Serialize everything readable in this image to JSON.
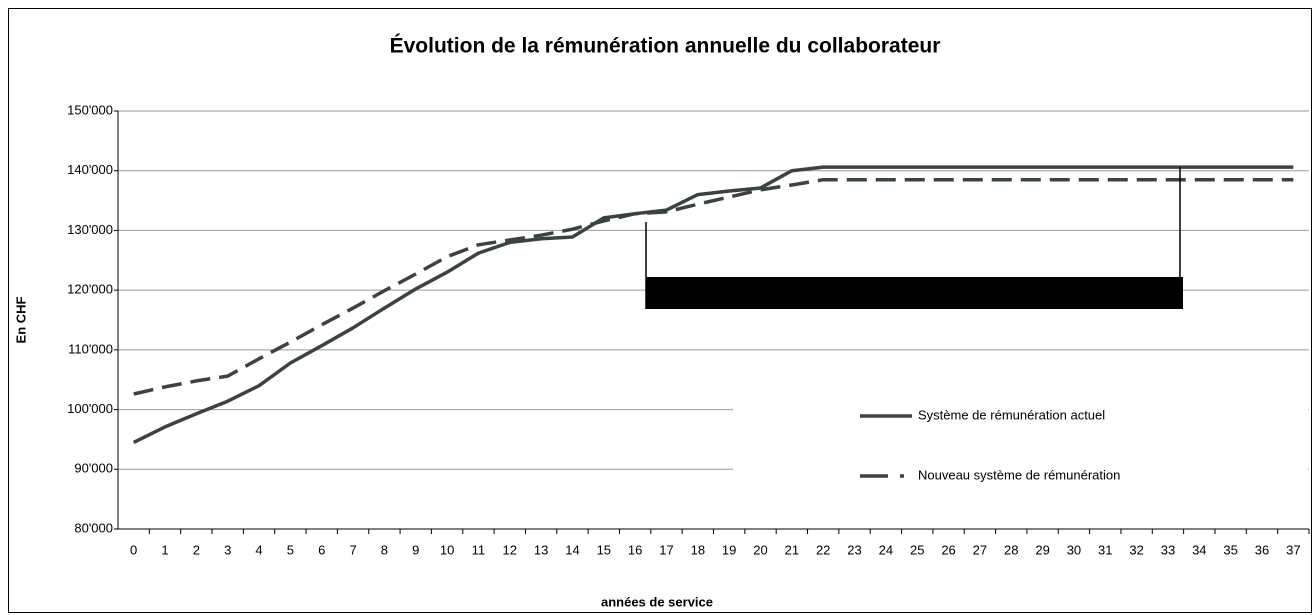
{
  "chart_data": {
    "type": "line",
    "title": "Évolution de la rémunération annuelle du collaborateur",
    "y_label": "En CHF",
    "x_label": "années de service",
    "categories": [
      0,
      1,
      2,
      3,
      4,
      5,
      6,
      7,
      8,
      9,
      10,
      11,
      12,
      13,
      14,
      15,
      16,
      17,
      18,
      19,
      20,
      21,
      22,
      23,
      24,
      25,
      26,
      27,
      28,
      29,
      30,
      31,
      32,
      33,
      34,
      35,
      36,
      37
    ],
    "series": [
      {
        "name": "Système de rémunération actuel",
        "color": "#3b4342",
        "dash": "solid",
        "values": [
          94500,
          97100,
          99300,
          101400,
          104000,
          107800,
          110700,
          113700,
          117000,
          120200,
          123000,
          126200,
          128000,
          128600,
          128900,
          132100,
          132800,
          133400,
          136000,
          136600,
          137100,
          140000,
          140600,
          140600,
          140600,
          140600,
          140600,
          140600,
          140600,
          140600,
          140600,
          140600,
          140600,
          140600,
          140600,
          140600,
          140600,
          140600
        ]
      },
      {
        "name": "Nouveau système de rémunération",
        "color": "#3b4342",
        "dash": "dashed",
        "values": [
          102600,
          103800,
          104800,
          105600,
          108500,
          111300,
          114200,
          117000,
          119900,
          122700,
          125600,
          127600,
          128400,
          129200,
          130200,
          131600,
          132800,
          133100,
          134400,
          135600,
          136800,
          137600,
          138500,
          138500,
          138500,
          138500,
          138500,
          138500,
          138500,
          138500,
          138500,
          138500,
          138500,
          138500,
          138500,
          138500,
          138500,
          138500
        ]
      }
    ],
    "ylim": [
      80000,
      150000
    ],
    "yticks": [
      {
        "value": 80000,
        "label": "80'000"
      },
      {
        "value": 90000,
        "label": "90'000"
      },
      {
        "value": 100000,
        "label": "100'000"
      },
      {
        "value": 110000,
        "label": "110'000"
      },
      {
        "value": 120000,
        "label": "120'000"
      },
      {
        "value": 130000,
        "label": "130'000"
      },
      {
        "value": 140000,
        "label": "140'000"
      },
      {
        "value": 150000,
        "label": "150'000"
      }
    ],
    "grid": true,
    "legend": "lower right"
  }
}
